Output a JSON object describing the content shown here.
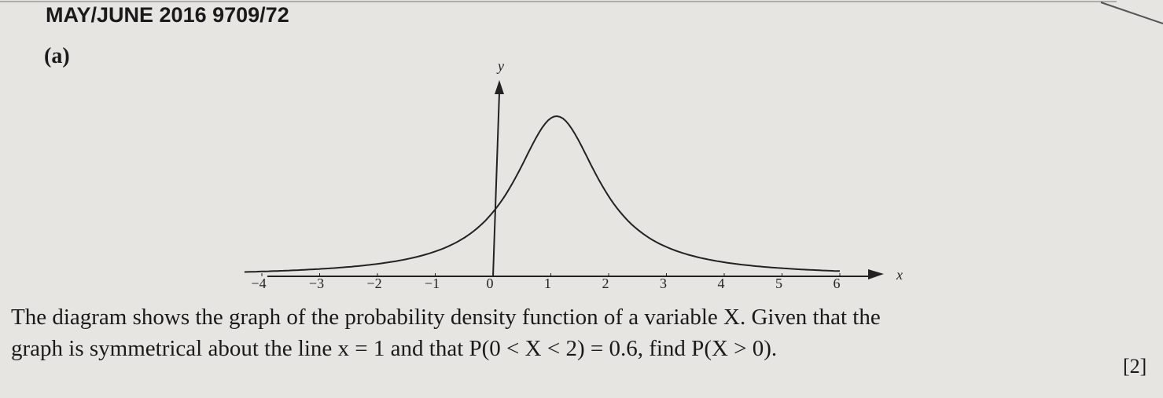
{
  "header": {
    "title": "MAY/JUNE 2016 9709/72"
  },
  "part": "(a)",
  "figure": {
    "x_label": "x",
    "y_label": "y",
    "x_ticks": [
      "−4",
      "−3",
      "−2",
      "−1",
      "0",
      "1",
      "2",
      "3",
      "4",
      "5",
      "6"
    ]
  },
  "question": {
    "lines": [
      "The diagram shows the graph of the probability density function of a variable X. Given that the",
      "graph is symmetrical about the line x = 1 and that P(0 < X < 2) = 0.6, find P(X > 0)."
    ],
    "marks": "[2]"
  }
}
